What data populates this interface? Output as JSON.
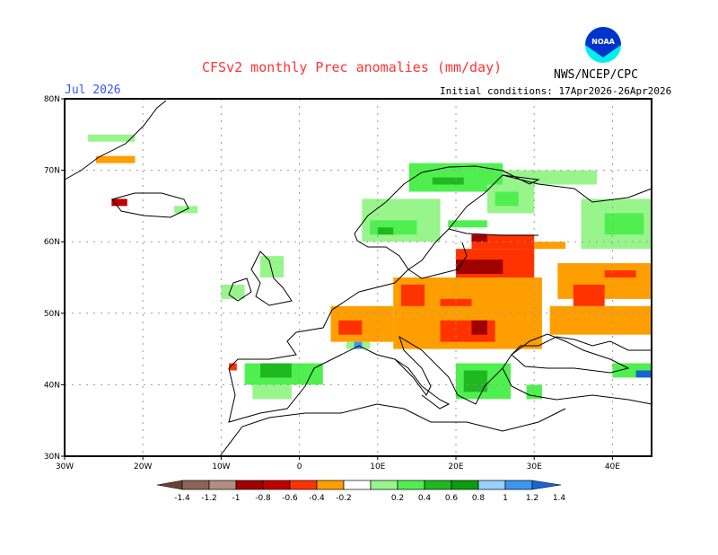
{
  "header": {
    "title": "CFSv2 monthly Prec anomalies (mm/day)",
    "month": "Jul 2026",
    "initial_conditions": "Initial conditions: 17Apr2026-26Apr2026",
    "organization": "NWS/NCEP/CPC",
    "logo_text": "NOAA"
  },
  "map": {
    "lon_range": [
      -30,
      45
    ],
    "lat_range": [
      30,
      80
    ],
    "lon_labels": [
      "30W",
      "20W",
      "10W",
      "0",
      "10E",
      "20E",
      "30E",
      "40E"
    ],
    "lat_labels": [
      "30N",
      "40N",
      "50N",
      "60N",
      "70N",
      "80N"
    ],
    "grid": true,
    "anomaly_regions": [
      {
        "lon": [
          14,
          26
        ],
        "lat": [
          67,
          71
        ],
        "value": 0.5
      },
      {
        "lon": [
          17,
          21
        ],
        "lat": [
          68,
          69
        ],
        "value": 0.7
      },
      {
        "lon": [
          8,
          18
        ],
        "lat": [
          60,
          66
        ],
        "value": 0.3
      },
      {
        "lon": [
          9,
          15
        ],
        "lat": [
          61,
          63
        ],
        "value": 0.5
      },
      {
        "lon": [
          10,
          12
        ],
        "lat": [
          61,
          62
        ],
        "value": 0.7
      },
      {
        "lon": [
          24,
          30
        ],
        "lat": [
          64,
          68
        ],
        "value": 0.3
      },
      {
        "lon": [
          25,
          28
        ],
        "lat": [
          65,
          67
        ],
        "value": 0.5
      },
      {
        "lon": [
          26,
          38
        ],
        "lat": [
          68,
          70
        ],
        "value": 0.3
      },
      {
        "lon": [
          36,
          45
        ],
        "lat": [
          59,
          66
        ],
        "value": 0.3
      },
      {
        "lon": [
          39,
          44
        ],
        "lat": [
          61,
          64
        ],
        "value": 0.5
      },
      {
        "lon": [
          19,
          24
        ],
        "lat": [
          62,
          63
        ],
        "value": 0.5
      },
      {
        "lon": [
          12,
          31
        ],
        "lat": [
          45,
          55
        ],
        "value": -0.3
      },
      {
        "lon": [
          4,
          12
        ],
        "lat": [
          46,
          51
        ],
        "value": -0.3
      },
      {
        "lon": [
          33,
          45
        ],
        "lat": [
          52,
          57
        ],
        "value": -0.3
      },
      {
        "lon": [
          32,
          45
        ],
        "lat": [
          47,
          51
        ],
        "value": -0.3
      },
      {
        "lon": [
          28,
          34
        ],
        "lat": [
          59,
          60
        ],
        "value": -0.3
      },
      {
        "lon": [
          22,
          30
        ],
        "lat": [
          59,
          61
        ],
        "value": -0.5
      },
      {
        "lon": [
          22,
          24
        ],
        "lat": [
          60,
          61
        ],
        "value": -0.9
      },
      {
        "lon": [
          20,
          30
        ],
        "lat": [
          55,
          59
        ],
        "value": -0.5
      },
      {
        "lon": [
          20,
          26
        ],
        "lat": [
          55.5,
          57.5
        ],
        "value": -0.9
      },
      {
        "lon": [
          13,
          16
        ],
        "lat": [
          51,
          54
        ],
        "value": -0.5
      },
      {
        "lon": [
          18,
          22
        ],
        "lat": [
          51,
          52
        ],
        "value": -0.5
      },
      {
        "lon": [
          18,
          25
        ],
        "lat": [
          46,
          49
        ],
        "value": -0.5
      },
      {
        "lon": [
          22,
          24
        ],
        "lat": [
          47,
          49
        ],
        "value": -0.9
      },
      {
        "lon": [
          5,
          8
        ],
        "lat": [
          47,
          49
        ],
        "value": -0.5
      },
      {
        "lon": [
          35,
          39
        ],
        "lat": [
          51,
          54
        ],
        "value": -0.5
      },
      {
        "lon": [
          39,
          43
        ],
        "lat": [
          55,
          56
        ],
        "value": -0.5
      },
      {
        "lon": [
          -7,
          3
        ],
        "lat": [
          40,
          43
        ],
        "value": 0.5
      },
      {
        "lon": [
          -5,
          -1
        ],
        "lat": [
          41,
          43
        ],
        "value": 0.7
      },
      {
        "lon": [
          -6,
          -1
        ],
        "lat": [
          38,
          40
        ],
        "value": 0.3
      },
      {
        "lon": [
          -9,
          -8
        ],
        "lat": [
          42,
          43
        ],
        "value": -0.5
      },
      {
        "lon": [
          6,
          9
        ],
        "lat": [
          45,
          46
        ],
        "value": 0.3
      },
      {
        "lon": [
          7,
          8
        ],
        "lat": [
          45,
          46
        ],
        "value": 1.3
      },
      {
        "lon": [
          20,
          27
        ],
        "lat": [
          38,
          43
        ],
        "value": 0.5
      },
      {
        "lon": [
          21,
          24
        ],
        "lat": [
          39,
          42
        ],
        "value": 0.7
      },
      {
        "lon": [
          29,
          31
        ],
        "lat": [
          38,
          40
        ],
        "value": 0.5
      },
      {
        "lon": [
          40,
          45
        ],
        "lat": [
          41,
          43
        ],
        "value": 0.5
      },
      {
        "lon": [
          43,
          45
        ],
        "lat": [
          41,
          42
        ],
        "value": 1.5
      },
      {
        "lon": [
          -5,
          -2
        ],
        "lat": [
          55,
          58
        ],
        "value": 0.3
      },
      {
        "lon": [
          -10,
          -7
        ],
        "lat": [
          52,
          54
        ],
        "value": 0.3
      },
      {
        "lon": [
          -24,
          -22
        ],
        "lat": [
          65,
          66
        ],
        "value": -0.7
      },
      {
        "lon": [
          -16,
          -13
        ],
        "lat": [
          64,
          65
        ],
        "value": 0.3
      },
      {
        "lon": [
          -26,
          -21
        ],
        "lat": [
          71,
          72
        ],
        "value": -0.3
      },
      {
        "lon": [
          -27,
          -21
        ],
        "lat": [
          74,
          75
        ],
        "value": 0.3
      }
    ]
  },
  "colorbar": {
    "labels": [
      "-1.4",
      "-1.2",
      "-1",
      "-0.8",
      "-0.6",
      "-0.4",
      "-0.2",
      "0.2",
      "0.4",
      "0.6",
      "0.8",
      "1",
      "1.2",
      "1.4"
    ],
    "colors": [
      "#6b4235",
      "#8c6457",
      "#b58c80",
      "#a00000",
      "#c00000",
      "#ff3300",
      "#ff9e00",
      "#ffffff",
      "#98f58c",
      "#50ef50",
      "#20b820",
      "#0c9c0c",
      "#98d0ff",
      "#3c96f0",
      "#1866d0"
    ]
  }
}
